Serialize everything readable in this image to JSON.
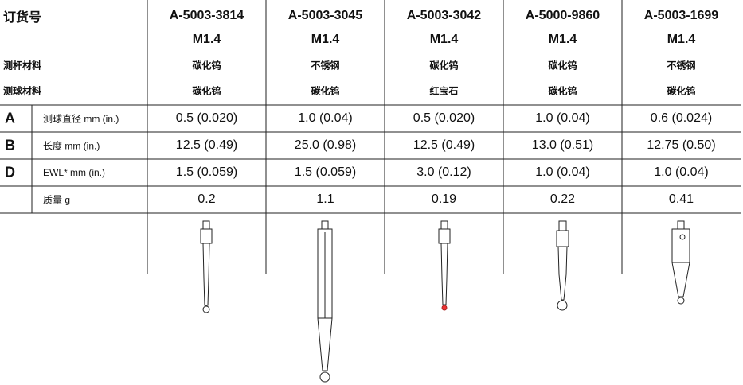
{
  "table": {
    "order_label": "订货号",
    "material_labels": [
      "测杆材料",
      "测球材料"
    ],
    "columns": [
      {
        "part": "A-5003-3814",
        "thread": "M1.4",
        "stem": "碳化钨",
        "ball": "碳化钨"
      },
      {
        "part": "A-5003-3045",
        "thread": "M1.4",
        "stem": "不锈钢",
        "ball": "碳化钨"
      },
      {
        "part": "A-5003-3042",
        "thread": "M1.4",
        "stem": "碳化钨",
        "ball": "红宝石"
      },
      {
        "part": "A-5000-9860",
        "thread": "M1.4",
        "stem": "碳化钨",
        "ball": "碳化钨"
      },
      {
        "part": "A-5003-1699",
        "thread": "M1.4",
        "stem": "不锈钢",
        "ball": "碳化钨"
      }
    ],
    "rows": [
      {
        "key": "A",
        "label": "测球直径 mm (in.)",
        "cells": [
          "0.5 (0.020)",
          "1.0 (0.04)",
          "0.5 (0.020)",
          "1.0 (0.04)",
          "0.6 (0.024)"
        ]
      },
      {
        "key": "B",
        "label": "长度 mm (in.)",
        "cells": [
          "12.5 (0.49)",
          "25.0 (0.98)",
          "12.5 (0.49)",
          "13.0 (0.51)",
          "12.75 (0.50)"
        ]
      },
      {
        "key": "D",
        "label": "EWL* mm (in.)",
        "cells": [
          "1.5 (0.059)",
          "1.5 (0.059)",
          "3.0 (0.12)",
          "1.0 (0.04)",
          "1.0 (0.04)"
        ]
      },
      {
        "key": null,
        "label": "质量 g",
        "cells": [
          "0.2",
          "1.1",
          "0.19",
          "0.22",
          "0.41"
        ]
      }
    ]
  }
}
